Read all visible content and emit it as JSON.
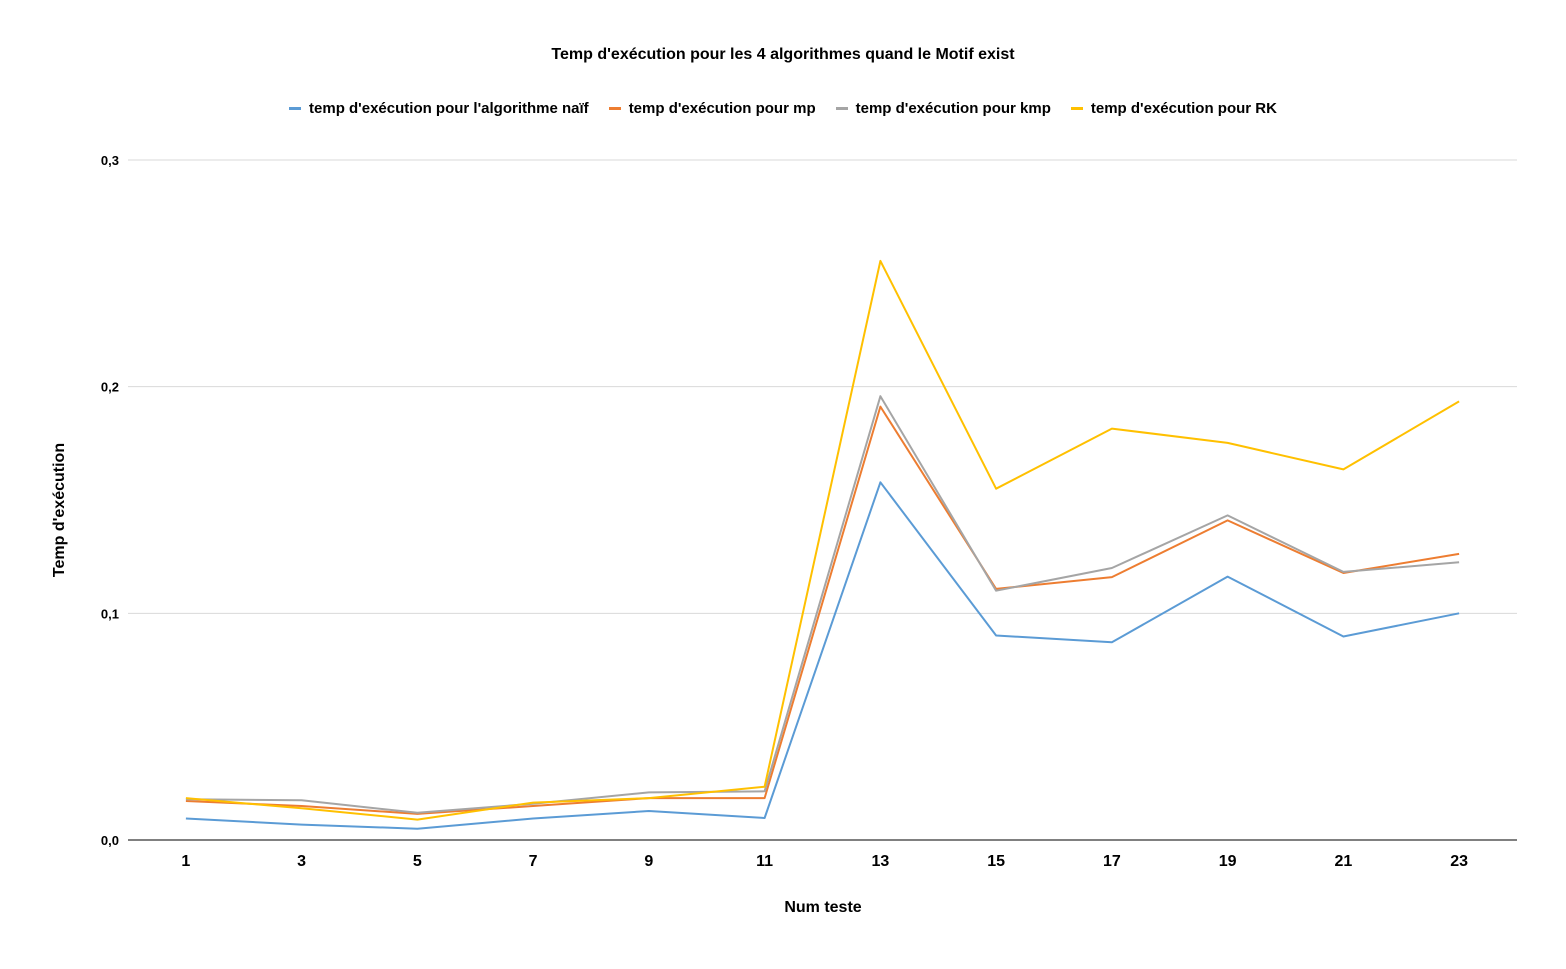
{
  "chart_data": {
    "type": "line",
    "title": "Temp d'exécution pour les 4 algorithmes quand le Motif exist",
    "xlabel": "Num teste",
    "ylabel": "Temp d'exécution",
    "categories": [
      "1",
      "3",
      "5",
      "7",
      "9",
      "11",
      "13",
      "15",
      "17",
      "19",
      "21",
      "23"
    ],
    "ylim": [
      0,
      0.3
    ],
    "yticks": [
      "0,0",
      "0,1",
      "0,2",
      "0,3"
    ],
    "grid": true,
    "legend": "top",
    "series": [
      {
        "name": "temp d'exécution pour l'algorithme naïf",
        "color": "#5b9bd5",
        "values": [
          0.0095,
          0.0068,
          0.005,
          0.0095,
          0.0128,
          0.0097,
          0.1578,
          0.0902,
          0.0872,
          0.1162,
          0.0898,
          0.1
        ]
      },
      {
        "name": "temp d'exécution pour mp",
        "color": "#ed7d31",
        "values": [
          0.0172,
          0.015,
          0.0115,
          0.015,
          0.0185,
          0.0185,
          0.1912,
          0.1108,
          0.116,
          0.141,
          0.1178,
          0.1262
        ]
      },
      {
        "name": "temp d'exécution pour kmp",
        "color": "#a5a5a5",
        "values": [
          0.018,
          0.0175,
          0.012,
          0.016,
          0.021,
          0.0215,
          0.1958,
          0.11,
          0.12,
          0.1432,
          0.1183,
          0.1225
        ]
      },
      {
        "name": "temp d'exécution pour RK",
        "color": "#ffc000",
        "values": [
          0.0185,
          0.014,
          0.009,
          0.0165,
          0.0185,
          0.0235,
          0.2555,
          0.155,
          0.1815,
          0.1752,
          0.1635,
          0.1935
        ]
      }
    ]
  }
}
